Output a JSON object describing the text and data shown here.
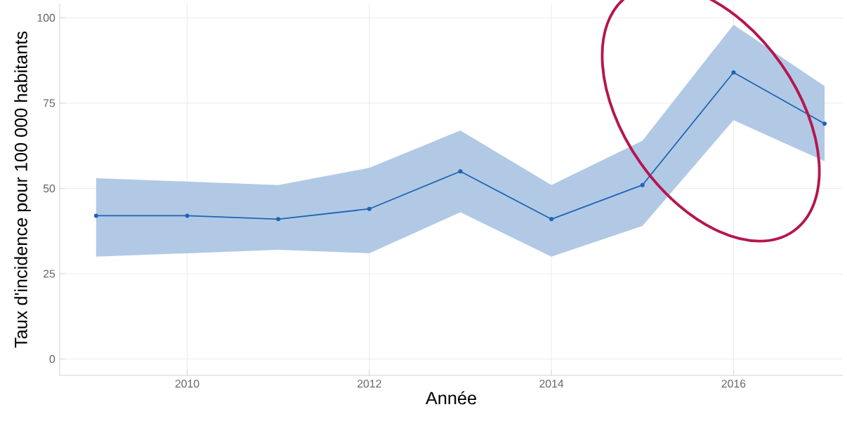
{
  "chart_data": {
    "type": "line",
    "xlabel": "Année",
    "ylabel": "Taux d'incidence pour 100 000 habitants",
    "x": [
      2009,
      2010,
      2011,
      2012,
      2013,
      2014,
      2015,
      2016,
      2017
    ],
    "series": [
      {
        "color": "#1f64b4",
        "values": [
          42,
          42,
          41,
          44,
          55,
          41,
          51,
          84,
          69
        ],
        "lower": [
          30,
          31,
          32,
          31,
          43,
          30,
          39,
          70,
          58
        ],
        "upper": [
          53,
          52,
          51,
          56,
          67,
          51,
          64,
          98,
          80
        ]
      }
    ],
    "xlim": [
      2008.6,
      2017.2
    ],
    "ylim": [
      -4.8,
      104.2
    ],
    "xticks": [
      2010,
      2012,
      2014,
      2016
    ],
    "yticks": [
      0,
      25,
      50,
      75,
      100
    ],
    "grid": true,
    "marker": "circle",
    "line_style": "solid"
  }
}
